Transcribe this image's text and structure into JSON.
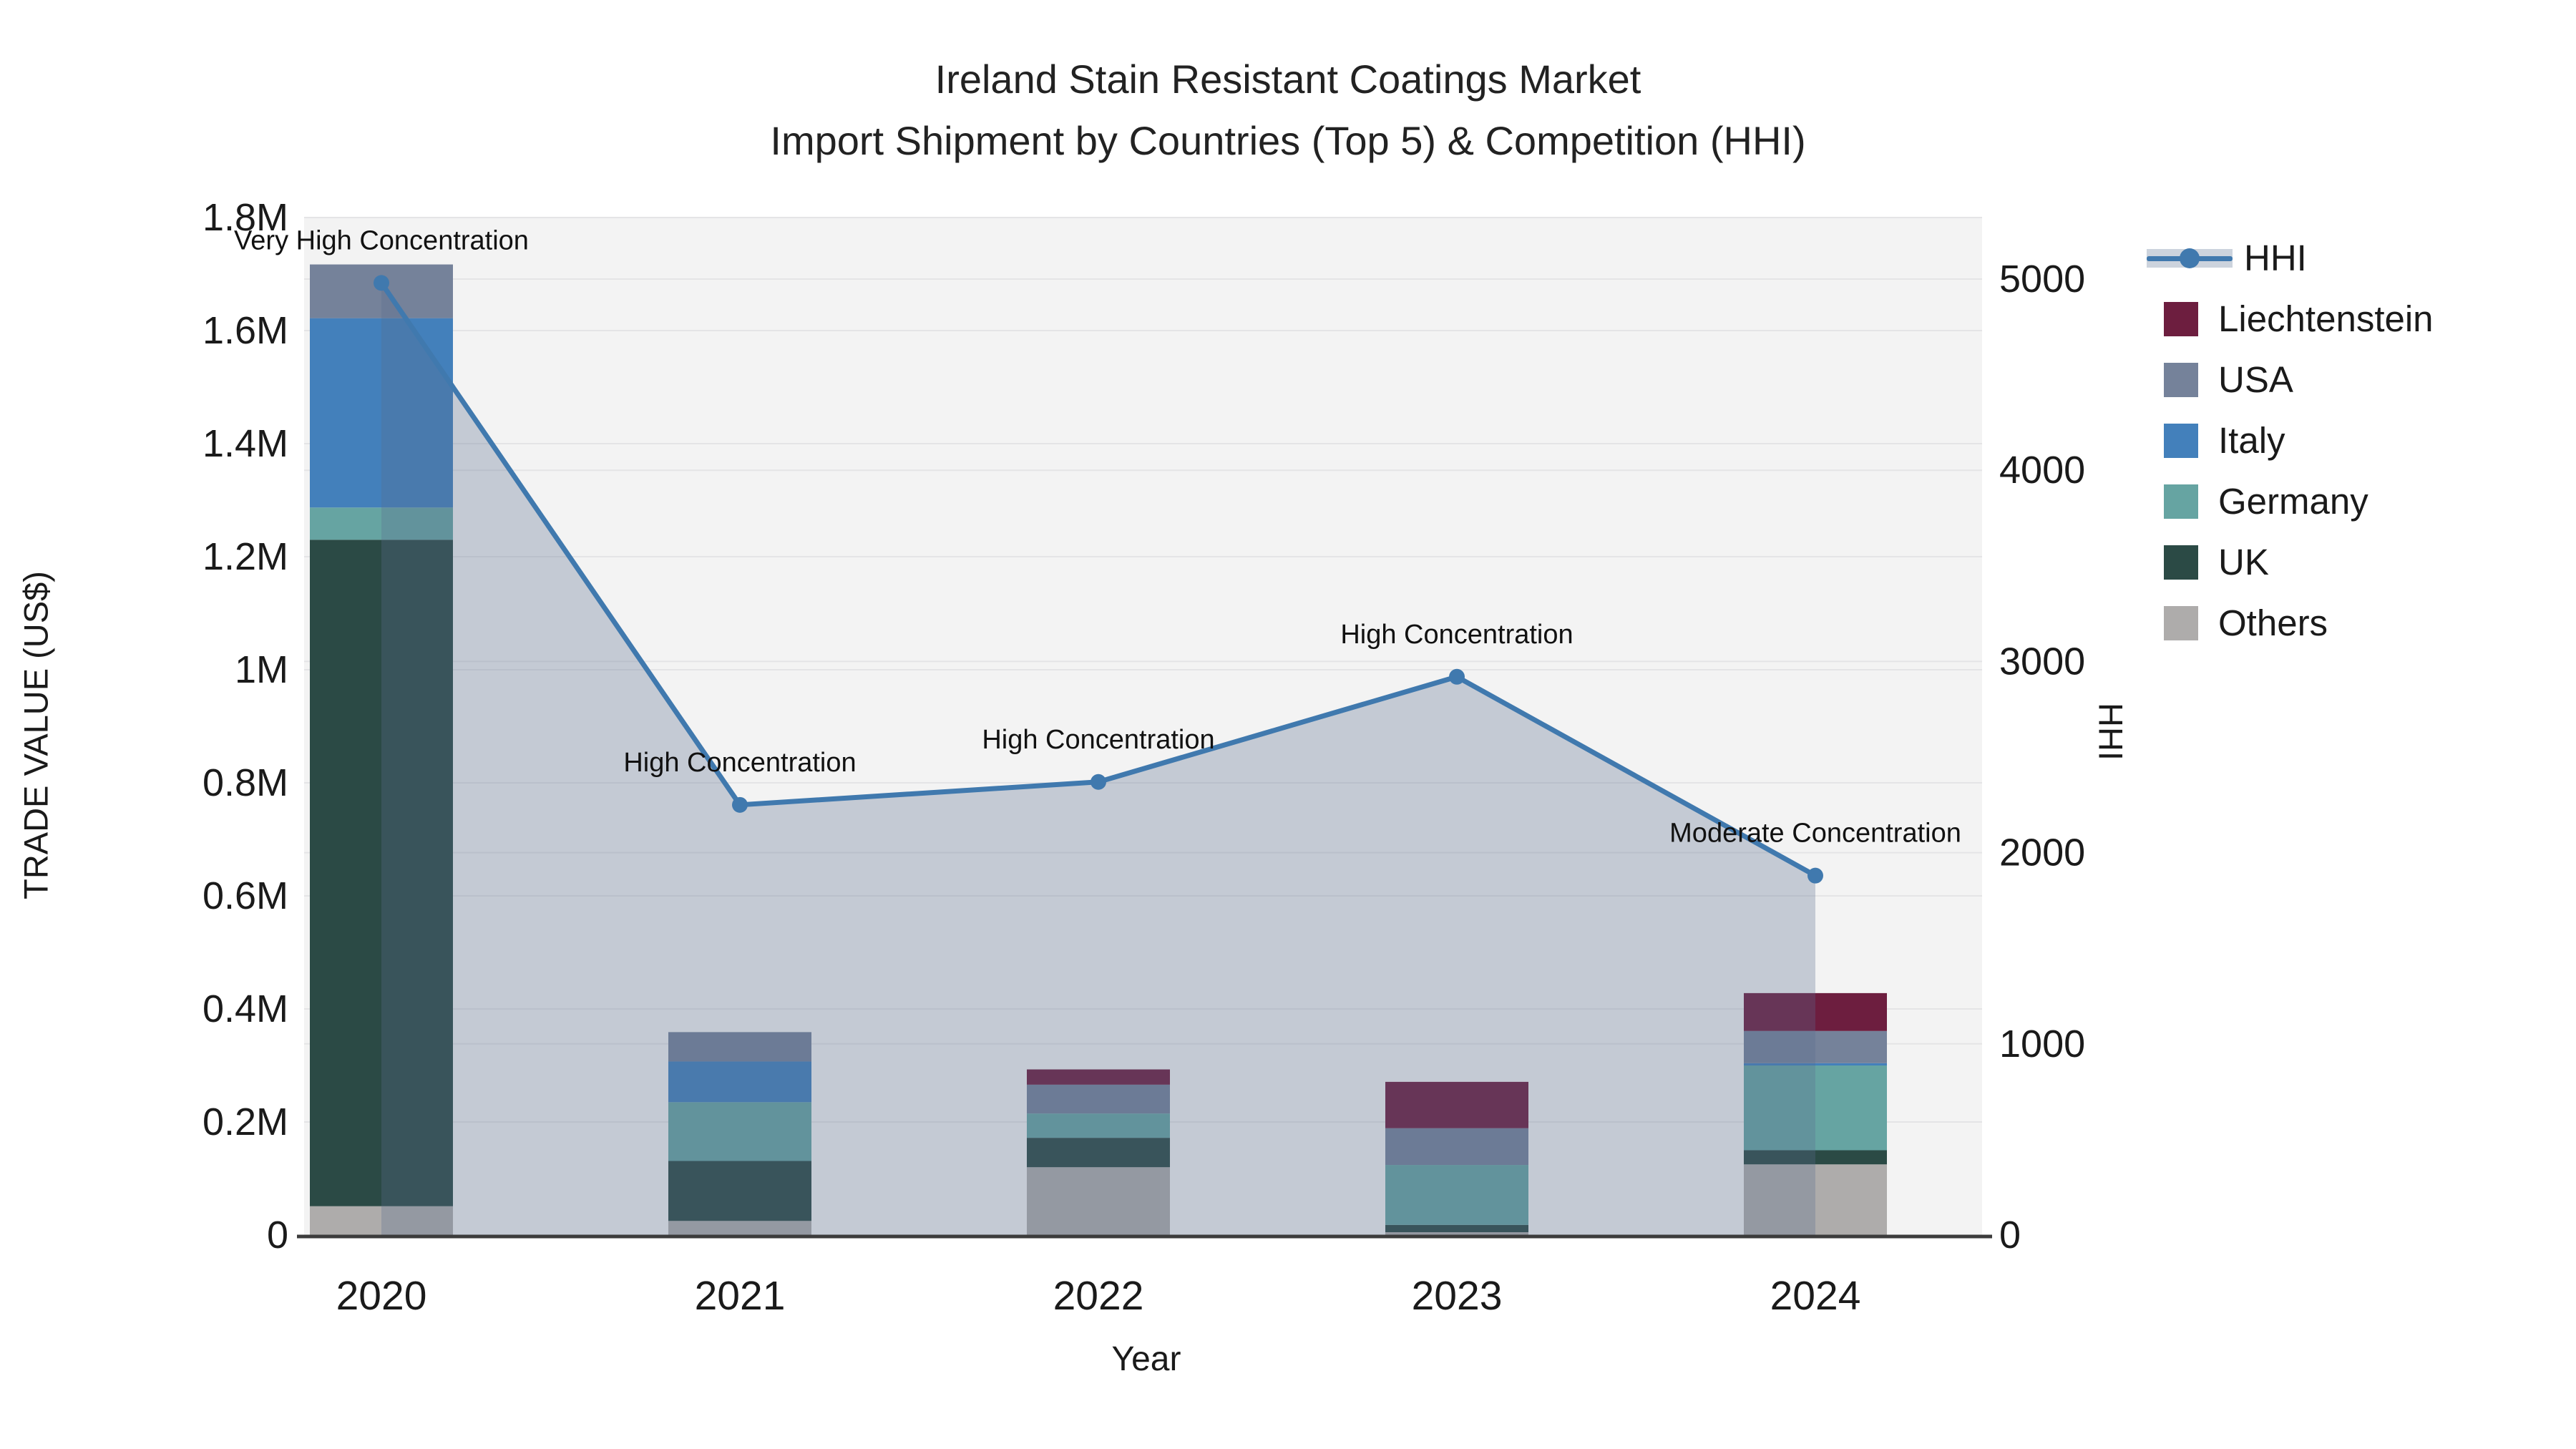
{
  "title": {
    "line1": "Ireland Stain Resistant Coatings Market",
    "line2": "Import Shipment by Countries (Top 5) & Competition (HHI)"
  },
  "axes": {
    "x_title": "Year",
    "y_left_title": "TRADE VALUE (US$)",
    "y_right_title": "HHI",
    "y_left_ticks": [
      {
        "value": 0,
        "label": "0"
      },
      {
        "value": 200000,
        "label": "0.2M"
      },
      {
        "value": 400000,
        "label": "0.4M"
      },
      {
        "value": 600000,
        "label": "0.6M"
      },
      {
        "value": 800000,
        "label": "0.8M"
      },
      {
        "value": 1000000,
        "label": "1M"
      },
      {
        "value": 1200000,
        "label": "1.2M"
      },
      {
        "value": 1400000,
        "label": "1.4M"
      },
      {
        "value": 1600000,
        "label": "1.6M"
      },
      {
        "value": 1800000,
        "label": "1.8M"
      }
    ],
    "y_right_ticks": [
      {
        "value": 0,
        "label": "0"
      },
      {
        "value": 1000,
        "label": "1000"
      },
      {
        "value": 2000,
        "label": "2000"
      },
      {
        "value": 3000,
        "label": "3000"
      },
      {
        "value": 4000,
        "label": "4000"
      },
      {
        "value": 5000,
        "label": "5000"
      }
    ]
  },
  "chart_data": {
    "type": "bar+line",
    "categories": [
      "2020",
      "2021",
      "2022",
      "2023",
      "2024"
    ],
    "bar_unit": "US$",
    "bar_stack_order_bottom_to_top": [
      "Others",
      "UK",
      "Germany",
      "Italy",
      "USA",
      "Liechtenstein"
    ],
    "series": [
      {
        "name": "Others",
        "color": "#aeacab",
        "values": [
          51000,
          25000,
          120000,
          5000,
          125000
        ]
      },
      {
        "name": "UK",
        "color": "#2b4a45",
        "values": [
          1179000,
          106000,
          52000,
          13000,
          25000
        ]
      },
      {
        "name": "Germany",
        "color": "#66a4a2",
        "values": [
          57000,
          104000,
          43000,
          106000,
          150000
        ]
      },
      {
        "name": "Italy",
        "color": "#4380bb",
        "values": [
          335000,
          72000,
          0,
          0,
          4000
        ]
      },
      {
        "name": "USA",
        "color": "#75829a",
        "values": [
          95000,
          52000,
          51000,
          65000,
          57000
        ]
      },
      {
        "name": "Liechtenstein",
        "color": "#6d1e3f",
        "values": [
          0,
          0,
          27000,
          82000,
          67000
        ]
      }
    ],
    "line_series": {
      "name": "HHI",
      "color": "#4079ae",
      "area_fill": "rgba(88,108,143,0.30)",
      "values": [
        4980,
        2250,
        2370,
        2920,
        1880
      ]
    },
    "annotations": [
      {
        "category": "2020",
        "text": "Very High Concentration"
      },
      {
        "category": "2021",
        "text": "High Concentration"
      },
      {
        "category": "2022",
        "text": "High Concentration"
      },
      {
        "category": "2023",
        "text": "High Concentration"
      },
      {
        "category": "2024",
        "text": "Moderate Concentration"
      }
    ],
    "y_left_range": [
      0,
      1800000
    ],
    "y_right_range": [
      0,
      5322
    ],
    "grid": true,
    "legend_position": "right",
    "legend_order": [
      "HHI",
      "Liechtenstein",
      "USA",
      "Italy",
      "Germany",
      "UK",
      "Others"
    ]
  },
  "style": {
    "plot_bg": "#f3f3f3",
    "grid_color": "#e4e4e6",
    "axis_line_color": "#3c3c3c",
    "text_color": "#1a1a1a"
  }
}
